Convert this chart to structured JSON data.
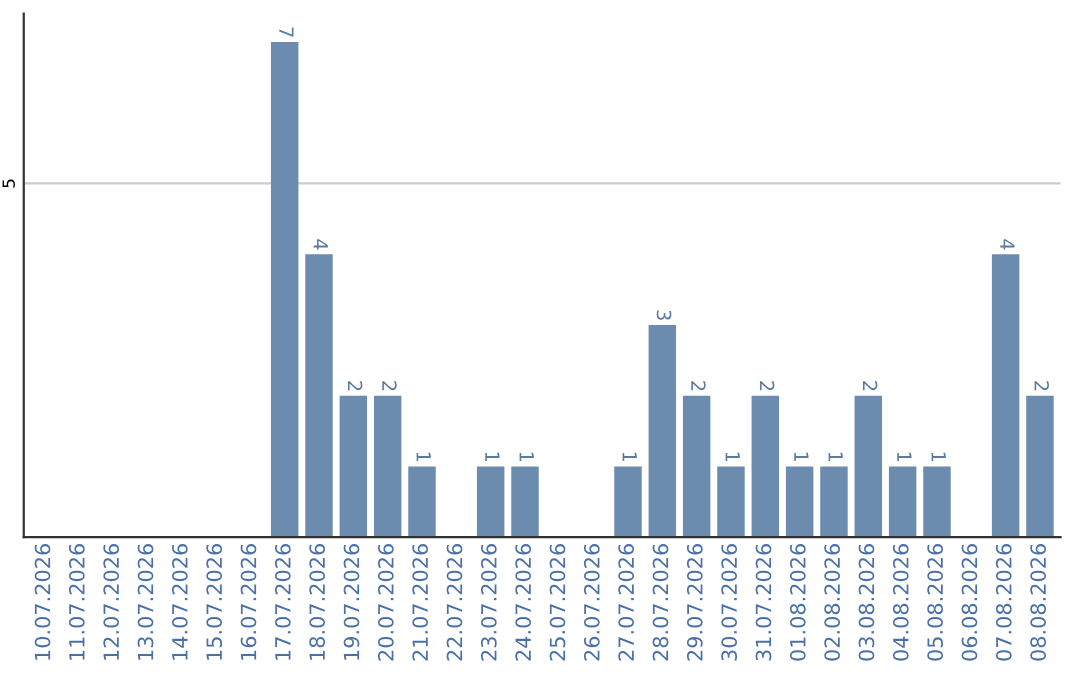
{
  "chart_data": {
    "type": "bar",
    "categories": [
      "10.07.2026",
      "11.07.2026",
      "12.07.2026",
      "13.07.2026",
      "14.07.2026",
      "15.07.2026",
      "16.07.2026",
      "17.07.2026",
      "18.07.2026",
      "19.07.2026",
      "20.07.2026",
      "21.07.2026",
      "22.07.2026",
      "23.07.2026",
      "24.07.2026",
      "25.07.2026",
      "26.07.2026",
      "27.07.2026",
      "28.07.2026",
      "29.07.2026",
      "30.07.2026",
      "31.07.2026",
      "01.08.2026",
      "02.08.2026",
      "03.08.2026",
      "04.08.2026",
      "05.08.2026",
      "06.08.2026",
      "07.08.2026",
      "08.08.2026"
    ],
    "values": [
      0,
      0,
      0,
      0,
      0,
      0,
      0,
      7,
      4,
      2,
      2,
      1,
      0,
      1,
      1,
      0,
      0,
      1,
      3,
      2,
      1,
      2,
      1,
      1,
      2,
      1,
      1,
      0,
      4,
      2
    ],
    "value_labels": [
      null,
      null,
      null,
      null,
      null,
      null,
      null,
      "7",
      "4",
      "2",
      "2",
      "1",
      null,
      "1",
      "1",
      null,
      null,
      "1",
      "3",
      "2",
      "1",
      "2",
      "1",
      "1",
      "2",
      "1",
      "1",
      null,
      "4",
      "2"
    ],
    "color": "#6b8cae",
    "ylim": [
      0,
      7.4
    ],
    "yticks": [
      5
    ],
    "grid": "y"
  }
}
